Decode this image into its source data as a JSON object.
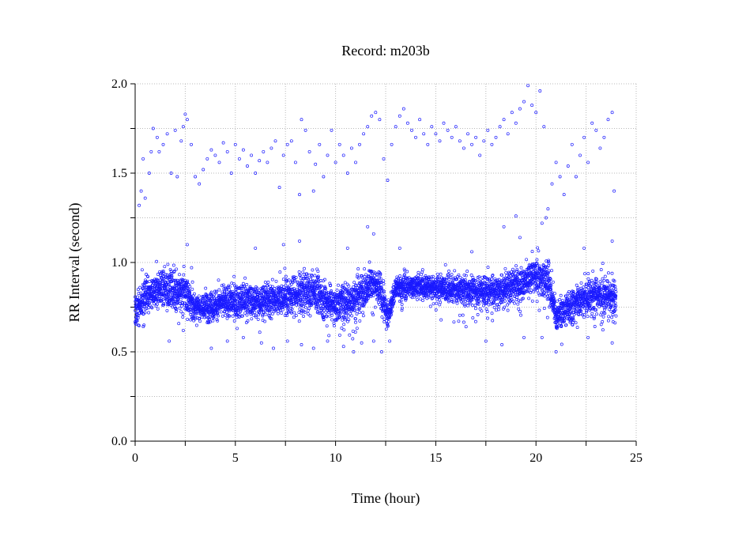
{
  "chart_data": {
    "type": "scatter",
    "title": "Record:  m203b",
    "xlabel": "Time (hour)",
    "ylabel": "RR Interval (second)",
    "xlim": [
      0,
      25
    ],
    "ylim": [
      0,
      2
    ],
    "x_ticks": [
      0,
      5,
      10,
      15,
      20,
      25
    ],
    "x_tick_labels": [
      "0",
      "5",
      "10",
      "15",
      "20",
      "25"
    ],
    "y_ticks": [
      0.0,
      0.5,
      1.0,
      1.5,
      2.0
    ],
    "y_tick_labels": [
      "0.0",
      "0.5",
      "1.0",
      "1.5",
      "2.0"
    ],
    "x_minor_step": 2.5,
    "y_minor_step": 0.25,
    "grid": true,
    "legend": "none",
    "marker_color": "#1a1aff",
    "marker": "open-circle",
    "x_range_recorded": [
      0,
      24
    ],
    "main_band": [
      {
        "x": 0.0,
        "center": 0.72,
        "low": 0.62,
        "high": 0.85
      },
      {
        "x": 0.5,
        "center": 0.8,
        "low": 0.65,
        "high": 0.95
      },
      {
        "x": 1.0,
        "center": 0.84,
        "low": 0.7,
        "high": 0.98
      },
      {
        "x": 1.5,
        "center": 0.86,
        "low": 0.7,
        "high": 1.0
      },
      {
        "x": 2.0,
        "center": 0.84,
        "low": 0.68,
        "high": 1.0
      },
      {
        "x": 2.5,
        "center": 0.84,
        "low": 0.66,
        "high": 1.0
      },
      {
        "x": 2.8,
        "center": 0.78,
        "low": 0.62,
        "high": 0.95
      },
      {
        "x": 3.0,
        "center": 0.74,
        "low": 0.63,
        "high": 0.85
      },
      {
        "x": 4.0,
        "center": 0.76,
        "low": 0.63,
        "high": 0.88
      },
      {
        "x": 5.0,
        "center": 0.79,
        "low": 0.63,
        "high": 0.9
      },
      {
        "x": 6.0,
        "center": 0.78,
        "low": 0.62,
        "high": 0.9
      },
      {
        "x": 7.0,
        "center": 0.8,
        "low": 0.63,
        "high": 0.92
      },
      {
        "x": 8.0,
        "center": 0.82,
        "low": 0.64,
        "high": 0.94
      },
      {
        "x": 9.0,
        "center": 0.84,
        "low": 0.65,
        "high": 0.95
      },
      {
        "x": 9.5,
        "center": 0.78,
        "low": 0.62,
        "high": 0.92
      },
      {
        "x": 10.0,
        "center": 0.76,
        "low": 0.6,
        "high": 0.9
      },
      {
        "x": 11.0,
        "center": 0.8,
        "low": 0.62,
        "high": 0.92
      },
      {
        "x": 11.8,
        "center": 0.9,
        "low": 0.75,
        "high": 1.02
      },
      {
        "x": 12.2,
        "center": 0.85,
        "low": 0.65,
        "high": 0.95
      },
      {
        "x": 12.6,
        "center": 0.7,
        "low": 0.58,
        "high": 0.8
      },
      {
        "x": 13.0,
        "center": 0.86,
        "low": 0.76,
        "high": 0.94
      },
      {
        "x": 14.0,
        "center": 0.87,
        "low": 0.74,
        "high": 0.94
      },
      {
        "x": 15.0,
        "center": 0.86,
        "low": 0.72,
        "high": 0.93
      },
      {
        "x": 16.0,
        "center": 0.85,
        "low": 0.7,
        "high": 0.93
      },
      {
        "x": 17.0,
        "center": 0.84,
        "low": 0.68,
        "high": 0.93
      },
      {
        "x": 18.0,
        "center": 0.84,
        "low": 0.68,
        "high": 0.95
      },
      {
        "x": 19.0,
        "center": 0.88,
        "low": 0.7,
        "high": 1.0
      },
      {
        "x": 20.0,
        "center": 0.92,
        "low": 0.74,
        "high": 1.05
      },
      {
        "x": 20.6,
        "center": 0.9,
        "low": 0.72,
        "high": 1.05
      },
      {
        "x": 21.0,
        "center": 0.7,
        "low": 0.58,
        "high": 0.8
      },
      {
        "x": 22.0,
        "center": 0.78,
        "low": 0.62,
        "high": 0.9
      },
      {
        "x": 23.0,
        "center": 0.82,
        "low": 0.66,
        "high": 0.95
      },
      {
        "x": 24.0,
        "center": 0.8,
        "low": 0.66,
        "high": 0.92
      }
    ],
    "outliers_high": [
      [
        0.2,
        1.32
      ],
      [
        0.3,
        1.4
      ],
      [
        0.4,
        1.58
      ],
      [
        0.5,
        1.36
      ],
      [
        0.7,
        1.5
      ],
      [
        0.8,
        1.62
      ],
      [
        0.9,
        1.75
      ],
      [
        1.1,
        1.7
      ],
      [
        1.2,
        1.62
      ],
      [
        1.4,
        1.66
      ],
      [
        1.6,
        1.72
      ],
      [
        1.8,
        1.5
      ],
      [
        2.0,
        1.74
      ],
      [
        2.1,
        1.48
      ],
      [
        2.3,
        1.68
      ],
      [
        2.4,
        1.76
      ],
      [
        2.5,
        1.83
      ],
      [
        2.6,
        1.8
      ],
      [
        2.8,
        1.66
      ],
      [
        3.0,
        1.48
      ],
      [
        3.2,
        1.44
      ],
      [
        3.4,
        1.52
      ],
      [
        3.6,
        1.58
      ],
      [
        3.8,
        1.63
      ],
      [
        4.0,
        1.6
      ],
      [
        4.2,
        1.56
      ],
      [
        4.4,
        1.67
      ],
      [
        4.6,
        1.62
      ],
      [
        4.8,
        1.5
      ],
      [
        5.0,
        1.66
      ],
      [
        5.2,
        1.58
      ],
      [
        5.4,
        1.63
      ],
      [
        5.6,
        1.54
      ],
      [
        5.8,
        1.6
      ],
      [
        6.0,
        1.5
      ],
      [
        6.2,
        1.57
      ],
      [
        6.4,
        1.62
      ],
      [
        6.6,
        1.56
      ],
      [
        6.8,
        1.64
      ],
      [
        7.0,
        1.68
      ],
      [
        7.2,
        1.42
      ],
      [
        7.4,
        1.6
      ],
      [
        7.6,
        1.66
      ],
      [
        7.8,
        1.68
      ],
      [
        8.0,
        1.56
      ],
      [
        8.2,
        1.38
      ],
      [
        8.3,
        1.8
      ],
      [
        8.5,
        1.74
      ],
      [
        8.7,
        1.62
      ],
      [
        8.9,
        1.4
      ],
      [
        9.0,
        1.55
      ],
      [
        9.2,
        1.66
      ],
      [
        9.4,
        1.48
      ],
      [
        9.6,
        1.6
      ],
      [
        9.8,
        1.74
      ],
      [
        10.0,
        1.56
      ],
      [
        10.2,
        1.66
      ],
      [
        10.4,
        1.6
      ],
      [
        10.6,
        1.5
      ],
      [
        10.8,
        1.64
      ],
      [
        11.0,
        1.56
      ],
      [
        11.2,
        1.66
      ],
      [
        11.4,
        1.72
      ],
      [
        11.6,
        1.76
      ],
      [
        11.8,
        1.82
      ],
      [
        12.0,
        1.84
      ],
      [
        12.2,
        1.8
      ],
      [
        12.4,
        1.58
      ],
      [
        12.6,
        1.46
      ],
      [
        12.8,
        1.66
      ],
      [
        13.0,
        1.76
      ],
      [
        13.2,
        1.82
      ],
      [
        13.4,
        1.86
      ],
      [
        13.6,
        1.78
      ],
      [
        13.8,
        1.74
      ],
      [
        14.0,
        1.7
      ],
      [
        14.2,
        1.8
      ],
      [
        14.4,
        1.72
      ],
      [
        14.6,
        1.66
      ],
      [
        14.8,
        1.76
      ],
      [
        15.0,
        1.72
      ],
      [
        15.2,
        1.68
      ],
      [
        15.4,
        1.78
      ],
      [
        15.6,
        1.74
      ],
      [
        15.8,
        1.7
      ],
      [
        16.0,
        1.76
      ],
      [
        16.2,
        1.68
      ],
      [
        16.4,
        1.64
      ],
      [
        16.6,
        1.72
      ],
      [
        16.8,
        1.66
      ],
      [
        17.0,
        1.7
      ],
      [
        17.2,
        1.6
      ],
      [
        17.4,
        1.68
      ],
      [
        17.6,
        1.74
      ],
      [
        17.8,
        1.66
      ],
      [
        18.0,
        1.7
      ],
      [
        18.2,
        1.76
      ],
      [
        18.4,
        1.8
      ],
      [
        18.6,
        1.72
      ],
      [
        18.8,
        1.84
      ],
      [
        19.0,
        1.78
      ],
      [
        19.2,
        1.86
      ],
      [
        19.4,
        1.9
      ],
      [
        19.6,
        1.99
      ],
      [
        19.8,
        1.88
      ],
      [
        20.0,
        1.84
      ],
      [
        20.2,
        1.96
      ],
      [
        20.4,
        1.76
      ],
      [
        20.6,
        1.3
      ],
      [
        20.8,
        1.44
      ],
      [
        21.0,
        1.56
      ],
      [
        21.2,
        1.48
      ],
      [
        21.4,
        1.38
      ],
      [
        21.6,
        1.54
      ],
      [
        21.8,
        1.66
      ],
      [
        22.0,
        1.48
      ],
      [
        22.2,
        1.6
      ],
      [
        22.4,
        1.7
      ],
      [
        22.6,
        1.56
      ],
      [
        22.8,
        1.78
      ],
      [
        23.0,
        1.74
      ],
      [
        23.2,
        1.64
      ],
      [
        23.4,
        1.7
      ],
      [
        23.6,
        1.8
      ],
      [
        23.8,
        1.84
      ],
      [
        23.9,
        1.4
      ],
      [
        18.4,
        1.2
      ],
      [
        19.0,
        1.26
      ],
      [
        19.2,
        1.14
      ],
      [
        20.3,
        1.22
      ],
      [
        20.5,
        1.25
      ],
      [
        11.6,
        1.2
      ],
      [
        11.9,
        1.16
      ],
      [
        22.4,
        1.08
      ],
      [
        8.2,
        1.12
      ],
      [
        2.6,
        1.1
      ],
      [
        6.0,
        1.08
      ],
      [
        7.4,
        1.1
      ],
      [
        10.6,
        1.08
      ],
      [
        13.2,
        1.08
      ],
      [
        16.8,
        1.06
      ],
      [
        23.8,
        1.12
      ]
    ],
    "outliers_low": [
      [
        1.7,
        0.56
      ],
      [
        2.4,
        0.62
      ],
      [
        3.8,
        0.52
      ],
      [
        4.6,
        0.56
      ],
      [
        5.4,
        0.58
      ],
      [
        6.3,
        0.55
      ],
      [
        6.9,
        0.52
      ],
      [
        7.6,
        0.56
      ],
      [
        8.3,
        0.54
      ],
      [
        8.9,
        0.52
      ],
      [
        9.6,
        0.56
      ],
      [
        10.4,
        0.53
      ],
      [
        10.9,
        0.5
      ],
      [
        11.3,
        0.55
      ],
      [
        11.9,
        0.56
      ],
      [
        12.3,
        0.5
      ],
      [
        12.7,
        0.56
      ],
      [
        17.5,
        0.56
      ],
      [
        18.3,
        0.54
      ],
      [
        19.4,
        0.58
      ],
      [
        20.3,
        0.58
      ],
      [
        21.0,
        0.5
      ],
      [
        22.6,
        0.58
      ],
      [
        23.8,
        0.55
      ]
    ]
  }
}
